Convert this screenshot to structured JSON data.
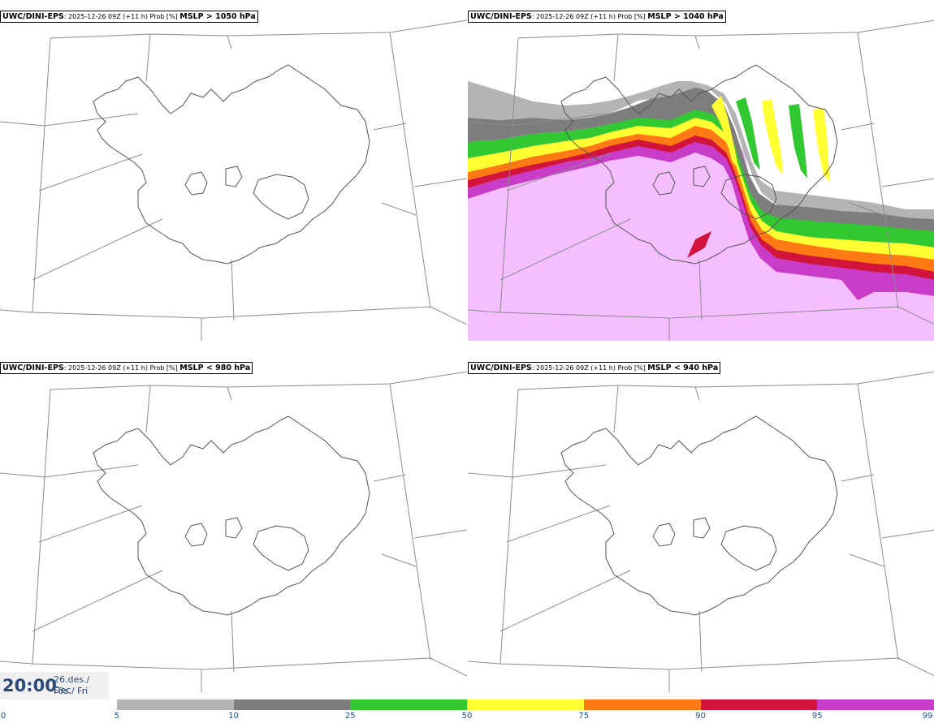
{
  "panels": [
    {
      "model": "UWC/DINI-EPS",
      "meta": ": 2025-12-26 09Z (+11 h) Prob [%] ",
      "threshold": "MSLP > 1050 hPa",
      "filled": false
    },
    {
      "model": "UWC/DINI-EPS",
      "meta": ": 2025-12-26 09Z (+11 h) Prob [%] ",
      "threshold": "MSLP > 1040 hPa",
      "filled": true
    },
    {
      "model": "UWC/DINI-EPS",
      "meta": ": 2025-12-26 09Z (+11 h) Prob [%] ",
      "threshold": "MSLP < 980 hPa",
      "filled": false
    },
    {
      "model": "UWC/DINI-EPS",
      "meta": ": 2025-12-26 09Z (+11 h) Prob [%] ",
      "threshold": "MSLP < 940 hPa",
      "filled": false
    }
  ],
  "valid_time": {
    "time": "20:00",
    "date_line1": "26.des./ Dec",
    "date_line2": "Fös./ Fri"
  },
  "colorbar": {
    "ticks": [
      "0",
      "5",
      "10",
      "25",
      "50",
      "75",
      "90",
      "95",
      "99"
    ],
    "colors": [
      "#ffffff",
      "#b4b4b4",
      "#7d7d7d",
      "#32c832",
      "#ffff32",
      "#ff7a14",
      "#d2143c",
      "#c83cc8",
      "#f5beff"
    ]
  }
}
